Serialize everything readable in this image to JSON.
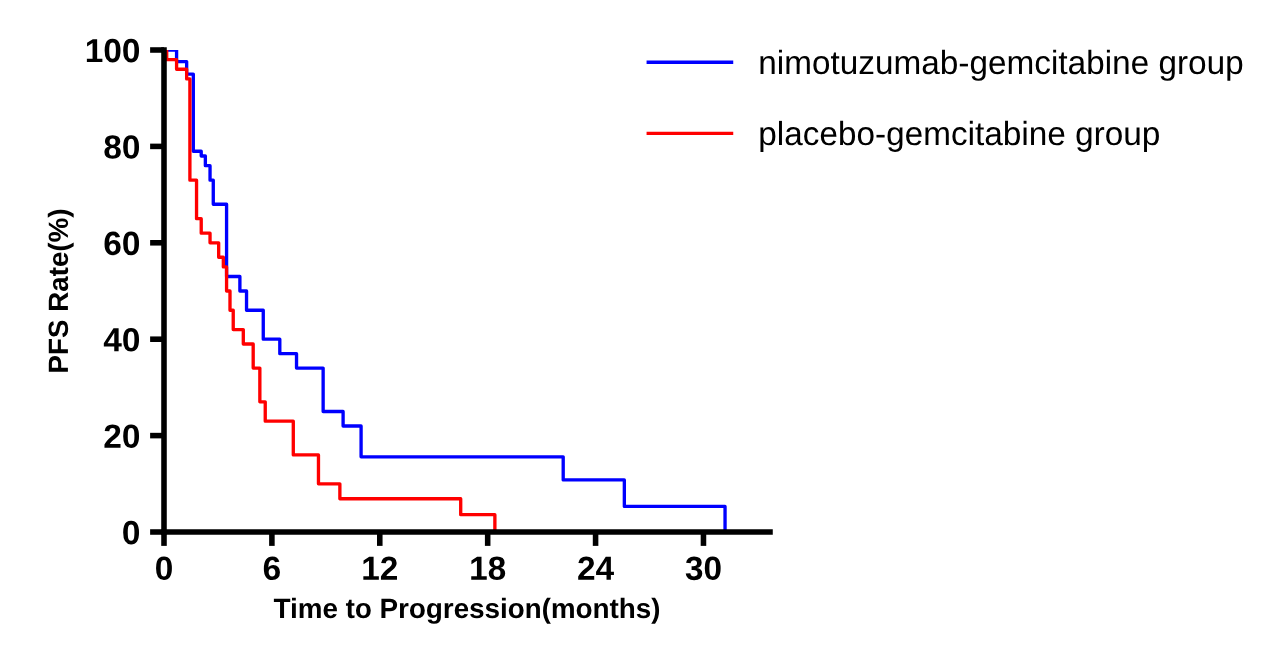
{
  "chart_data": {
    "type": "step",
    "xlabel": "Time to Progression(months)",
    "ylabel": "PFS Rate(%)",
    "xlim": [
      0,
      33.7
    ],
    "ylim": [
      0,
      100
    ],
    "xticks": [
      0,
      6,
      12,
      18,
      24,
      30
    ],
    "yticks": [
      0,
      20,
      40,
      60,
      80,
      100
    ],
    "grid": false,
    "legend": "top right",
    "series": [
      {
        "name": "nimotuzumab-gemcitabine group",
        "color": "#0000ff",
        "x": [
          0,
          0.7,
          1.26,
          1.63,
          2.07,
          2.3,
          2.56,
          2.74,
          3.48,
          4.22,
          4.59,
          5.52,
          6.44,
          7.37,
          8.85,
          9.96,
          10.96,
          22.2,
          25.6,
          31.2
        ],
        "values": [
          100,
          97.6,
          95,
          79,
          78,
          76,
          73,
          68,
          53,
          50,
          46,
          40,
          37,
          34,
          25,
          22,
          15.6,
          10.8,
          5.3,
          0
        ]
      },
      {
        "name": "placebo-gemcitabine group",
        "color": "#ff0000",
        "x": [
          0,
          0.15,
          0.7,
          1.26,
          1.44,
          1.81,
          2.07,
          2.56,
          3.04,
          3.3,
          3.48,
          3.67,
          3.85,
          4.41,
          4.96,
          5.33,
          5.63,
          7.19,
          8.59,
          9.78,
          16.5,
          18.4
        ],
        "values": [
          100,
          98,
          96,
          94,
          73,
          65,
          62,
          60,
          57,
          55,
          50,
          46,
          42,
          39,
          34,
          27,
          23,
          16,
          10,
          6.9,
          3.6,
          0
        ]
      }
    ]
  }
}
